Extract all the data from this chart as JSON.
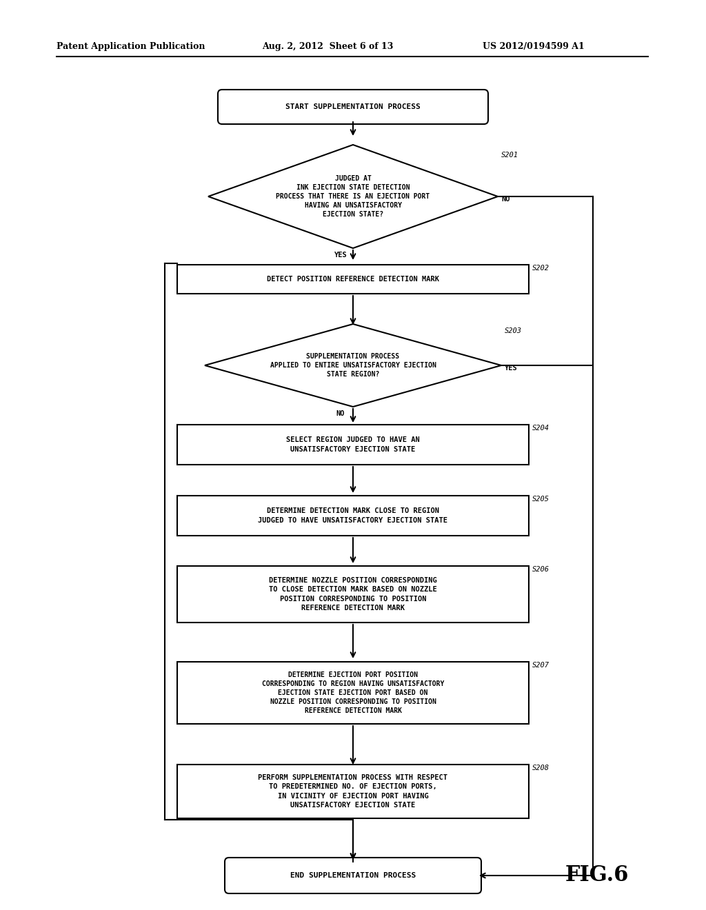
{
  "bg_color": "#ffffff",
  "header_left": "Patent Application Publication",
  "header_mid": "Aug. 2, 2012  Sheet 6 of 13",
  "header_right": "US 2012/0194599 A1",
  "fig_label": "FIG.6",
  "start_text": "START SUPPLEMENTATION PROCESS",
  "end_text": "END SUPPLEMENTATION PROCESS",
  "s201_text": "JUDGED AT\nINK EJECTION STATE DETECTION\nPROCESS THAT THERE IS AN EJECTION PORT\nHAVING AN UNSATISFACTORY\nEJECTION STATE?",
  "s202_text": "DETECT POSITION REFERENCE DETECTION MARK",
  "s203_text": "SUPPLEMENTATION PROCESS\nAPPLIED TO ENTIRE UNSATISFACTORY EJECTION\nSTATE REGION?",
  "s204_text": "SELECT REGION JUDGED TO HAVE AN\nUNSATISFACTORY EJECTION STATE",
  "s205_text": "DETERMINE DETECTION MARK CLOSE TO REGION\nJUDGED TO HAVE UNSATISFACTORY EJECTION STATE",
  "s206_text": "DETERMINE NOZZLE POSITION CORRESPONDING\nTO CLOSE DETECTION MARK BASED ON NOZZLE\nPOSITION CORRESPONDING TO POSITION\nREFERENCE DETECTION MARK",
  "s207_text": "DETERMINE EJECTION PORT POSITION\nCORRESPONDING TO REGION HAVING UNSATISFACTORY\nEJECTION STATE EJECTION PORT BASED ON\nNOZZLE POSITION CORRESPONDING TO POSITION\nREFERENCE DETECTION MARK",
  "s208_text": "PERFORM SUPPLEMENTATION PROCESS WITH RESPECT\nTO PREDETERMINED NO. OF EJECTION PORTS,\nIN VICINITY OF EJECTION PORT HAVING\nUNSATISFACTORY EJECTION STATE"
}
